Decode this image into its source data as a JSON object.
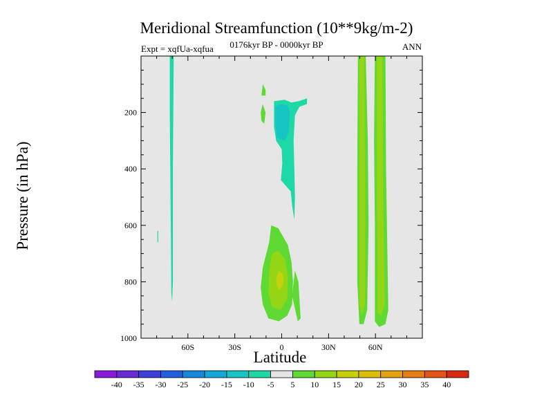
{
  "chart_data": {
    "type": "contour",
    "title": "Meridional Streamfunction (10**9kg/m-2)",
    "subtitle_left": "Expt = xqfUa-xqfua",
    "subtitle_center": "0176kyr BP - 0000kyr BP",
    "subtitle_right": "ANN",
    "xlabel": "Latitude",
    "ylabel": "Pressure (in hPa)",
    "xlim": [
      -90,
      90
    ],
    "ylim": [
      1000,
      0
    ],
    "x_ticks": [
      {
        "value": -60,
        "label": "60S"
      },
      {
        "value": -30,
        "label": "30S"
      },
      {
        "value": 0,
        "label": "0"
      },
      {
        "value": 30,
        "label": "30N"
      },
      {
        "value": 60,
        "label": "60N"
      }
    ],
    "y_ticks": [
      {
        "value": 200,
        "label": "200"
      },
      {
        "value": 400,
        "label": "400"
      },
      {
        "value": 600,
        "label": "600"
      },
      {
        "value": 800,
        "label": "800"
      },
      {
        "value": 1000,
        "label": "1000"
      }
    ],
    "background_color": "#e6e6e6",
    "colorbar": {
      "labels": [
        "-40",
        "-35",
        "-30",
        "-25",
        "-20",
        "-15",
        "-10",
        "-5",
        "5",
        "10",
        "15",
        "20",
        "25",
        "30",
        "35",
        "40"
      ],
      "colors": [
        "#8a1ad9",
        "#6a2ad6",
        "#3d3fd8",
        "#1f5fe0",
        "#1588dc",
        "#12a8d8",
        "#17c4c4",
        "#1ed9a6",
        "#e6e6e6",
        "#5fd933",
        "#94d615",
        "#c6d00b",
        "#dcbf0a",
        "#e2a10f",
        "#e67c14",
        "#e45517",
        "#d92a10"
      ]
    },
    "regions": [
      {
        "name": "sh-polar-strip",
        "level": -5,
        "color": "#1ed9a6",
        "points": [
          [
            -71.6,
            0
          ],
          [
            -69.1,
            0
          ],
          [
            -69.6,
            400
          ],
          [
            -69.6,
            800
          ],
          [
            -70.1,
            870
          ],
          [
            -70.6,
            840
          ],
          [
            -71.1,
            500
          ],
          [
            -71.6,
            200
          ]
        ]
      },
      {
        "name": "sh-small-dash",
        "level": -5,
        "color": "#1ed9a6",
        "points": [
          [
            -79.5,
            620
          ],
          [
            -79.0,
            620
          ],
          [
            -79.0,
            660
          ],
          [
            -79.5,
            660
          ]
        ]
      },
      {
        "name": "upper-equator-cell",
        "level": -5,
        "color": "#1ed9a6",
        "points": [
          [
            -4.9,
            160
          ],
          [
            1.8,
            155
          ],
          [
            6.3,
            165
          ],
          [
            10.9,
            160
          ],
          [
            16.2,
            150
          ],
          [
            16.2,
            170
          ],
          [
            11.3,
            180
          ],
          [
            8.5,
            210
          ],
          [
            7.6,
            300
          ],
          [
            8.1,
            400
          ],
          [
            8.5,
            500
          ],
          [
            8.1,
            580
          ],
          [
            6.7,
            530
          ],
          [
            5.8,
            480
          ],
          [
            -0.5,
            440
          ],
          [
            0.4,
            380
          ],
          [
            0,
            330
          ],
          [
            -3.6,
            300
          ],
          [
            -4.9,
            250
          ],
          [
            -4.9,
            200
          ]
        ]
      },
      {
        "name": "upper-equator-core",
        "level": -10,
        "color": "#17c4c4",
        "points": [
          [
            -4.0,
            180
          ],
          [
            -0.5,
            170
          ],
          [
            3.6,
            175
          ],
          [
            5.4,
            200
          ],
          [
            4.9,
            230
          ],
          [
            4.5,
            270
          ],
          [
            2.2,
            300
          ],
          [
            -3.1,
            290
          ],
          [
            -4.0,
            240
          ]
        ]
      },
      {
        "name": "nh-upper-small-left",
        "level": 5,
        "color": "#5fd933",
        "points": [
          [
            -12.9,
            140
          ],
          [
            -12.1,
            100
          ],
          [
            -10.3,
            120
          ],
          [
            -10.3,
            140
          ]
        ]
      },
      {
        "name": "nh-upper-small-left-2",
        "level": 5,
        "color": "#5fd933",
        "points": [
          [
            -13.4,
            200
          ],
          [
            -12.1,
            170
          ],
          [
            -10.3,
            200
          ],
          [
            -11.2,
            240
          ],
          [
            -12.9,
            230
          ]
        ]
      },
      {
        "name": "lower-equator-cell",
        "level": 5,
        "color": "#5fd933",
        "points": [
          [
            -12.1,
            750
          ],
          [
            -8.0,
            660
          ],
          [
            -6.7,
            600
          ],
          [
            -2.2,
            610
          ],
          [
            4.0,
            670
          ],
          [
            6.3,
            730
          ],
          [
            7.2,
            800
          ],
          [
            6.7,
            880
          ],
          [
            3.6,
            920
          ],
          [
            -1.8,
            940
          ],
          [
            -8.5,
            930
          ],
          [
            -12.1,
            880
          ],
          [
            -13.4,
            820
          ]
        ]
      },
      {
        "name": "lower-equator-core",
        "level": 10,
        "color": "#94d615",
        "points": [
          [
            -8.0,
            760
          ],
          [
            -6.2,
            700
          ],
          [
            -2.2,
            690
          ],
          [
            2.2,
            720
          ],
          [
            4.0,
            780
          ],
          [
            3.6,
            860
          ],
          [
            -0.5,
            900
          ],
          [
            -6.2,
            890
          ],
          [
            -8.5,
            840
          ]
        ]
      },
      {
        "name": "lower-equator-inner",
        "level": 15,
        "color": "#c6d00b",
        "points": [
          [
            -3.6,
            790
          ],
          [
            -1.8,
            760
          ],
          [
            0.9,
            775
          ],
          [
            0.9,
            810
          ],
          [
            -1.3,
            830
          ],
          [
            -3.1,
            815
          ]
        ]
      },
      {
        "name": "lower-equator-side",
        "level": 5,
        "color": "#5fd933",
        "points": [
          [
            6.7,
            850
          ],
          [
            8.5,
            760
          ],
          [
            10.7,
            800
          ],
          [
            12.1,
            930
          ],
          [
            10.3,
            940
          ]
        ]
      },
      {
        "name": "nh-midlat-band-1",
        "level": 5,
        "color": "#5fd933",
        "points": [
          [
            48.8,
            0
          ],
          [
            53.8,
            0
          ],
          [
            55.1,
            300
          ],
          [
            55.6,
            600
          ],
          [
            54.7,
            900
          ],
          [
            52.4,
            950
          ],
          [
            49.7,
            950
          ],
          [
            48.4,
            800
          ],
          [
            48.4,
            400
          ]
        ]
      },
      {
        "name": "nh-midlat-band-1-core",
        "level": 10,
        "color": "#94d615",
        "points": [
          [
            49.7,
            0
          ],
          [
            52.9,
            0
          ],
          [
            53.4,
            500
          ],
          [
            53.4,
            880
          ],
          [
            51.1,
            920
          ],
          [
            49.7,
            880
          ],
          [
            49.7,
            300
          ]
        ]
      },
      {
        "name": "nh-midlat-band-2",
        "level": 5,
        "color": "#5fd933",
        "points": [
          [
            59.6,
            0
          ],
          [
            66.4,
            0
          ],
          [
            66.8,
            400
          ],
          [
            68.2,
            900
          ],
          [
            66.4,
            950
          ],
          [
            62.3,
            960
          ],
          [
            59.6,
            940
          ],
          [
            59.6,
            600
          ],
          [
            59.1,
            300
          ]
        ]
      },
      {
        "name": "nh-midlat-band-2-core",
        "level": 10,
        "color": "#94d615",
        "points": [
          [
            60.9,
            0
          ],
          [
            64.5,
            0
          ],
          [
            65.0,
            500
          ],
          [
            65.9,
            880
          ],
          [
            63.6,
            920
          ],
          [
            61.4,
            910
          ],
          [
            60.9,
            500
          ]
        ]
      }
    ]
  }
}
